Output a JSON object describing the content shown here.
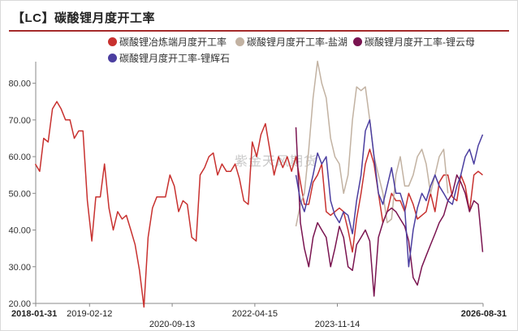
{
  "title": "【LC】碳酸锂月度开工率",
  "watermark": "紫金天风期货",
  "chart_data": {
    "type": "line",
    "ylim": [
      20,
      85
    ],
    "yticks": [
      "20.00",
      "30.00",
      "40.00",
      "50.00",
      "60.00",
      "70.00",
      "80.00"
    ],
    "xlim": [
      "2018-01-31",
      "2026-08-31"
    ],
    "xticks": [
      {
        "label": "2018-01-31",
        "date": "2018-01-31",
        "row": 0,
        "bold": true,
        "anchor": "start"
      },
      {
        "label": "2019-02-12",
        "date": "2019-02-12",
        "row": 0,
        "bold": false,
        "anchor": "middle"
      },
      {
        "label": "2020-09-13",
        "date": "2020-09-13",
        "row": 1,
        "bold": false,
        "anchor": "middle"
      },
      {
        "label": "2022-04-15",
        "date": "2022-04-15",
        "row": 0,
        "bold": false,
        "anchor": "middle"
      },
      {
        "label": "2023-11-14",
        "date": "2023-11-14",
        "row": 1,
        "bold": false,
        "anchor": "middle"
      },
      {
        "label": "2026-08-31",
        "date": "2026-08-31",
        "row": 0,
        "bold": true,
        "anchor": "end"
      }
    ],
    "series": [
      {
        "name": "碳酸锂冶炼端月度开工率",
        "color": "#c8312f",
        "x": [
          "2018-01",
          "2018-02",
          "2018-03",
          "2018-04",
          "2018-05",
          "2018-06",
          "2018-07",
          "2018-08",
          "2018-09",
          "2018-10",
          "2018-11",
          "2018-12",
          "2019-01",
          "2019-02",
          "2019-03",
          "2019-04",
          "2019-05",
          "2019-06",
          "2019-07",
          "2019-08",
          "2019-09",
          "2019-10",
          "2019-11",
          "2019-12",
          "2020-01",
          "2020-02",
          "2020-03",
          "2020-04",
          "2020-05",
          "2020-06",
          "2020-07",
          "2020-08",
          "2020-09",
          "2020-10",
          "2020-11",
          "2020-12",
          "2021-01",
          "2021-02",
          "2021-03",
          "2021-04",
          "2021-05",
          "2021-06",
          "2021-07",
          "2021-08",
          "2021-09",
          "2021-10",
          "2021-11",
          "2021-12",
          "2022-01",
          "2022-02",
          "2022-03",
          "2022-04",
          "2022-05",
          "2022-06",
          "2022-07",
          "2022-08",
          "2022-09",
          "2022-10",
          "2022-11",
          "2022-12",
          "2023-01",
          "2023-02",
          "2023-03",
          "2023-04",
          "2023-05",
          "2023-06",
          "2023-07",
          "2023-08",
          "2023-09",
          "2023-10",
          "2023-11",
          "2023-12",
          "2024-01",
          "2024-02",
          "2024-03",
          "2024-04",
          "2024-05",
          "2024-06",
          "2024-07",
          "2024-08",
          "2024-09",
          "2024-10",
          "2024-11",
          "2024-12",
          "2025-01",
          "2025-02",
          "2025-03",
          "2025-04",
          "2025-05",
          "2025-06",
          "2025-07",
          "2025-08",
          "2025-09",
          "2025-10",
          "2025-11",
          "2025-12",
          "2026-01",
          "2026-02",
          "2026-03",
          "2026-04",
          "2026-05",
          "2026-06",
          "2026-07",
          "2026-08"
        ],
        "values": [
          58,
          56,
          65,
          64,
          73,
          75,
          73,
          70,
          70,
          65,
          67,
          67,
          48,
          37,
          49,
          49,
          58,
          46,
          40,
          45,
          43,
          44,
          40,
          36,
          29,
          19,
          38,
          46,
          49,
          49,
          49,
          55,
          52,
          45,
          48,
          47,
          38,
          37,
          55,
          57,
          60,
          61,
          55,
          58,
          56,
          56,
          58,
          54,
          48,
          47,
          64,
          60,
          66,
          69,
          62,
          55,
          60,
          57,
          60,
          56,
          60,
          53,
          47,
          47,
          53,
          55,
          58,
          45,
          44,
          45,
          46,
          45,
          40,
          34,
          43,
          50,
          58,
          62,
          58,
          50,
          42,
          45,
          50,
          48,
          48,
          45,
          50,
          47,
          43,
          44,
          45,
          50,
          45,
          53,
          55,
          55,
          49,
          48,
          55,
          52,
          45,
          55,
          56,
          55
        ]
      },
      {
        "name": "碳酸锂月度开工率-盐湖",
        "color": "#c2b2a2",
        "x": [
          "2023-01",
          "2023-02",
          "2023-03",
          "2023-04",
          "2023-05",
          "2023-06",
          "2023-07",
          "2023-08",
          "2023-09",
          "2023-10",
          "2023-11",
          "2023-12",
          "2024-01",
          "2024-02",
          "2024-03",
          "2024-04",
          "2024-05",
          "2024-06",
          "2024-07",
          "2024-08",
          "2024-09",
          "2024-10",
          "2024-11",
          "2024-12",
          "2025-01",
          "2025-02",
          "2025-03",
          "2025-04",
          "2025-05",
          "2025-06",
          "2025-07",
          "2025-08",
          "2025-09",
          "2025-10",
          "2025-11",
          "2025-12"
        ],
        "values": [
          41,
          47,
          50,
          62,
          76,
          86,
          80,
          76,
          65,
          60,
          58,
          50,
          55,
          70,
          79,
          78,
          79,
          70,
          60,
          55,
          50,
          42,
          43,
          55,
          60,
          52,
          52,
          55,
          60,
          62,
          58,
          50,
          55,
          60,
          62,
          50
        ]
      },
      {
        "name": "碳酸锂月度开工率-锂云母",
        "color": "#7a1450",
        "x": [
          "2023-01",
          "2023-02",
          "2023-03",
          "2023-04",
          "2023-05",
          "2023-06",
          "2023-07",
          "2023-08",
          "2023-09",
          "2023-10",
          "2023-11",
          "2023-12",
          "2024-01",
          "2024-02",
          "2024-03",
          "2024-04",
          "2024-05",
          "2024-06",
          "2024-07",
          "2024-08",
          "2024-09",
          "2024-10",
          "2024-11",
          "2024-12",
          "2025-01",
          "2025-02",
          "2025-03",
          "2025-04",
          "2025-05",
          "2025-06",
          "2025-07",
          "2025-08",
          "2025-09",
          "2025-10",
          "2025-11",
          "2025-12",
          "2026-01",
          "2026-02",
          "2026-03",
          "2026-04",
          "2026-05",
          "2026-06",
          "2026-07",
          "2026-08"
        ],
        "values": [
          68,
          42,
          35,
          30,
          38,
          42,
          40,
          38,
          30,
          35,
          41,
          38,
          30,
          29,
          36,
          38,
          40,
          37,
          22,
          38,
          42,
          45,
          46,
          45,
          43,
          41,
          37,
          27,
          25,
          30,
          33,
          36,
          39,
          42,
          44,
          48,
          50,
          55,
          53,
          50,
          45,
          48,
          47,
          34
        ]
      },
      {
        "name": "碳酸锂月度开工率-锂辉石",
        "color": "#4b3ea0",
        "x": [
          "2023-01",
          "2023-02",
          "2023-03",
          "2023-04",
          "2023-05",
          "2023-06",
          "2023-07",
          "2023-08",
          "2023-09",
          "2023-10",
          "2023-11",
          "2023-12",
          "2024-01",
          "2024-02",
          "2024-03",
          "2024-04",
          "2024-05",
          "2024-06",
          "2024-07",
          "2024-08",
          "2024-09",
          "2024-10",
          "2024-11",
          "2024-12",
          "2025-01",
          "2025-02",
          "2025-03",
          "2025-04",
          "2025-05",
          "2025-06",
          "2025-07",
          "2025-08",
          "2025-09",
          "2025-10",
          "2025-11",
          "2025-12",
          "2026-01",
          "2026-02",
          "2026-03",
          "2026-04",
          "2026-05",
          "2026-06",
          "2026-07",
          "2026-08"
        ],
        "values": [
          55,
          48,
          45,
          50,
          55,
          61,
          58,
          60,
          48,
          44,
          42,
          45,
          44,
          39,
          48,
          55,
          67,
          70,
          60,
          50,
          47,
          52,
          57,
          50,
          50,
          46,
          30,
          40,
          46,
          50,
          48,
          52,
          55,
          52,
          50,
          48,
          47,
          52,
          55,
          60,
          62,
          58,
          63,
          66
        ]
      }
    ]
  }
}
